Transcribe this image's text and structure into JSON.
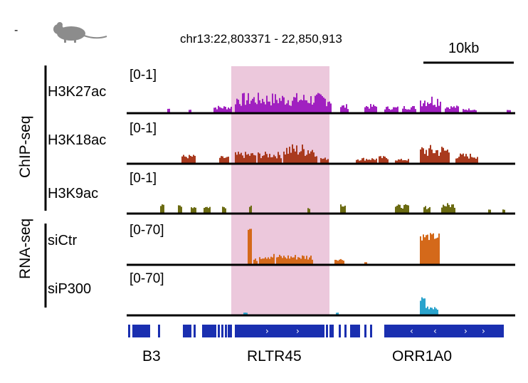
{
  "header": {
    "coordinates": "chr13:22,803371 - 22,850,913",
    "scale_label": "10kb",
    "species_icon": "mouse-icon"
  },
  "groups": [
    {
      "label": "ChIP-seq"
    },
    {
      "label": "RNA-seq"
    }
  ],
  "tracks": [
    {
      "label": "H3K27ac",
      "range": "[0-1]",
      "color": "#a020c0"
    },
    {
      "label": "H3K18ac",
      "range": "[0-1]",
      "color": "#a93a1e"
    },
    {
      "label": "H3K9ac",
      "range": "[0-1]",
      "color": "#6b6b12"
    },
    {
      "label": "siCtr",
      "range": "[0-70]",
      "color": "#d4691a"
    },
    {
      "label": "siP300",
      "range": "[0-70]",
      "color": "#2aa3cc"
    }
  ],
  "highlight": {
    "color": "#ecc8dc"
  },
  "genes": {
    "color": "#1a2fb0",
    "labels": [
      "B3",
      "RLTR45",
      "ORR1A0"
    ]
  }
}
